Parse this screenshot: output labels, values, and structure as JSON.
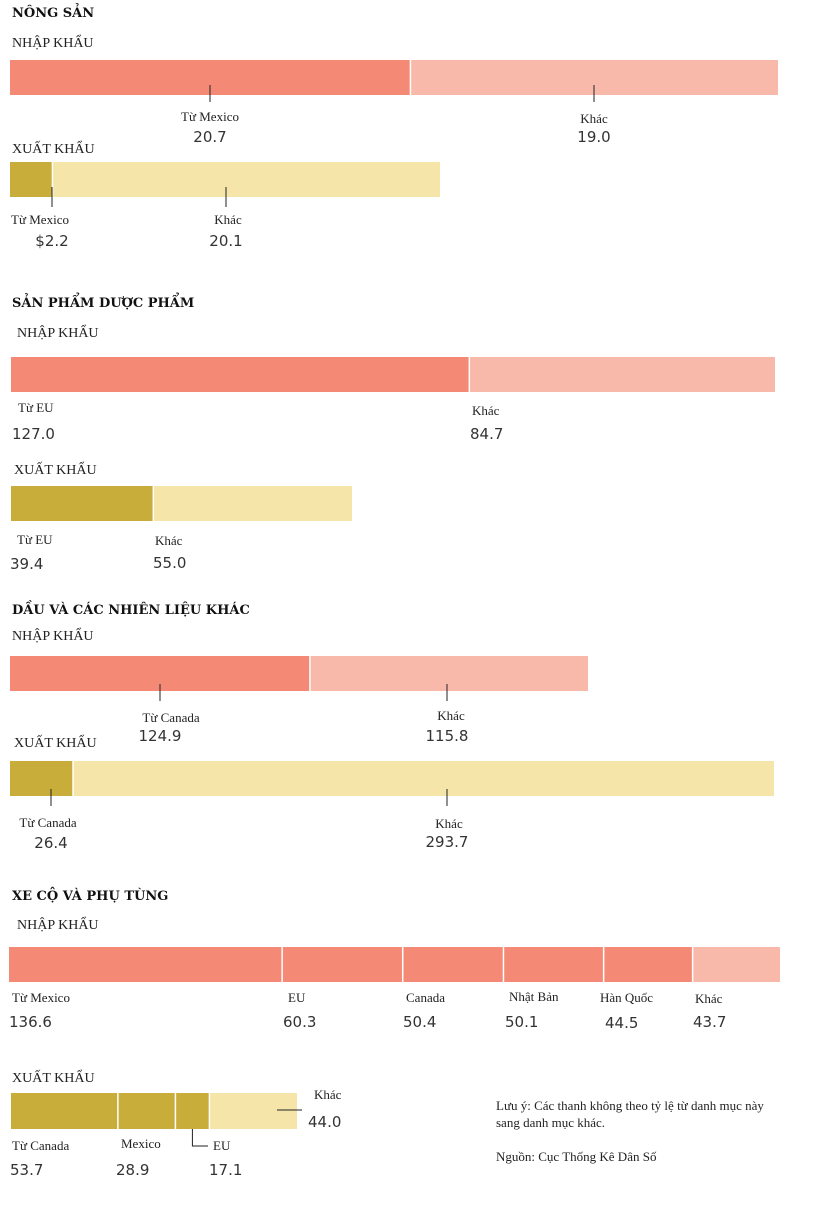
{
  "colors": {
    "import_main": "#f48976",
    "import_other": "#f9b9aa",
    "export_main": "#c8ad3a",
    "export_other": "#f5e5a9"
  },
  "chart_data": [
    {
      "type": "bar",
      "title": "NÔNG SẢN",
      "groups": [
        {
          "label": "NHẬP KHẨU",
          "kind": "import",
          "segments": [
            {
              "name": "Từ Mexico",
              "value_text": "20.7",
              "value": 20.7
            },
            {
              "name": "Khác",
              "value_text": "19.0",
              "value": 19.0
            }
          ]
        },
        {
          "label": "XUẤT KHẨU",
          "kind": "export",
          "segments": [
            {
              "name": "Từ Mexico",
              "value_text": "$2.2",
              "value": 2.2
            },
            {
              "name": "Khác",
              "value_text": "20.1",
              "value": 20.1
            }
          ]
        }
      ]
    },
    {
      "type": "bar",
      "title": "SẢN PHẨM DƯỢC PHẨM",
      "groups": [
        {
          "label": "NHẬP KHẨU",
          "kind": "import",
          "segments": [
            {
              "name": "Từ EU",
              "value_text": "127.0",
              "value": 127.0
            },
            {
              "name": "Khác",
              "value_text": "84.7",
              "value": 84.7
            }
          ]
        },
        {
          "label": "XUẤT KHẨU",
          "kind": "export",
          "segments": [
            {
              "name": "Từ EU",
              "value_text": "39.4",
              "value": 39.4
            },
            {
              "name": "Khác",
              "value_text": "55.0",
              "value": 55.0
            }
          ]
        }
      ]
    },
    {
      "type": "bar",
      "title": "DẦU VÀ CÁC NHIÊN LIỆU KHÁC",
      "groups": [
        {
          "label": "NHẬP KHẨU",
          "kind": "import",
          "segments": [
            {
              "name": "Từ Canada",
              "value_text": "124.9",
              "value": 124.9
            },
            {
              "name": "Khác",
              "value_text": "115.8",
              "value": 115.8
            }
          ]
        },
        {
          "label": "XUẤT KHẨU",
          "kind": "export",
          "segments": [
            {
              "name": "Từ Canada",
              "value_text": "26.4",
              "value": 26.4
            },
            {
              "name": "Khác",
              "value_text": "293.7",
              "value": 293.7
            }
          ]
        }
      ]
    },
    {
      "type": "bar",
      "title": "XE CỘ VÀ PHỤ TÙNG",
      "groups": [
        {
          "label": "NHẬP KHẨU",
          "kind": "import",
          "segments": [
            {
              "name": "Từ Mexico",
              "value_text": "136.6",
              "value": 136.6
            },
            {
              "name": "EU",
              "value_text": "60.3",
              "value": 60.3
            },
            {
              "name": "Canada",
              "value_text": "50.4",
              "value": 50.4
            },
            {
              "name": "Nhật Bản",
              "value_text": "50.1",
              "value": 50.1
            },
            {
              "name": "Hàn Quốc",
              "value_text": "44.5",
              "value": 44.5
            },
            {
              "name": "Khác",
              "value_text": "43.7",
              "value": 43.7
            }
          ]
        },
        {
          "label": "XUẤT KHẨU",
          "kind": "export",
          "segments": [
            {
              "name": "Từ Canada",
              "value_text": "53.7",
              "value": 53.7
            },
            {
              "name": "Mexico",
              "value_text": "28.9",
              "value": 28.9
            },
            {
              "name": "EU",
              "value_text": "17.1",
              "value": 17.1
            },
            {
              "name": "Khác",
              "value_text": "44.0",
              "value": 44.0
            }
          ]
        }
      ]
    }
  ],
  "note": {
    "line1": "Lưu ý: Các thanh không theo tỷ lệ từ danh mục này",
    "line2": "sang danh mục khác.",
    "source": "Nguồn: Cục Thống Kê Dân Số"
  }
}
